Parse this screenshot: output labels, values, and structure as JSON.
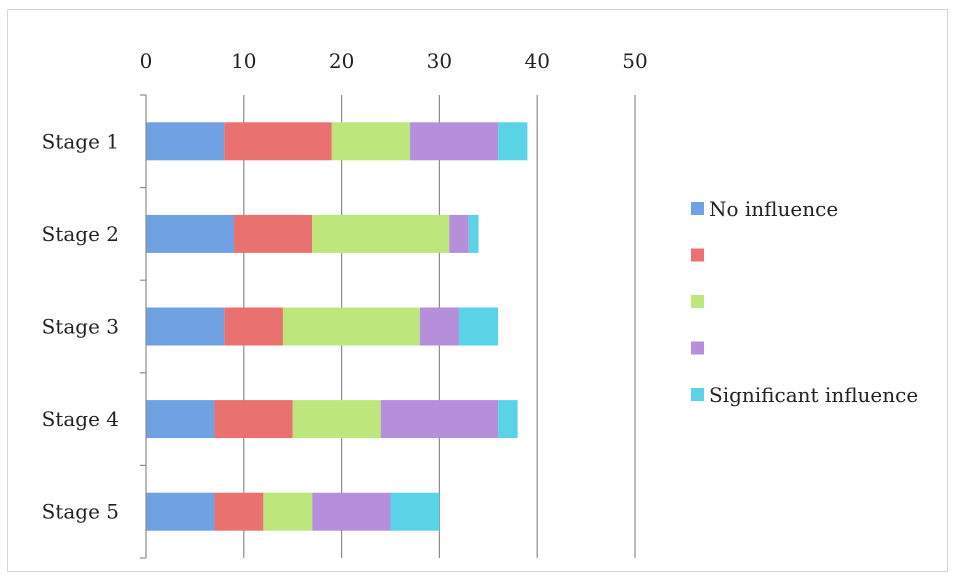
{
  "chart_data": {
    "type": "bar",
    "orientation": "horizontal",
    "stacked": true,
    "categories": [
      "Stage 1",
      "Stage 2",
      "Stage 3",
      "Stage 4",
      "Stage 5"
    ],
    "series": [
      {
        "name": "No influence",
        "color": "#6fa1e3",
        "values": [
          8,
          9,
          8,
          7,
          7
        ]
      },
      {
        "name": "",
        "color": "#e9716f",
        "values": [
          11,
          8,
          6,
          8,
          5
        ]
      },
      {
        "name": "",
        "color": "#bde77d",
        "values": [
          8,
          14,
          14,
          9,
          5
        ]
      },
      {
        "name": "",
        "color": "#b58fda",
        "values": [
          9,
          2,
          4,
          12,
          8
        ]
      },
      {
        "name": "Significant influence",
        "color": "#5bd3e6",
        "values": [
          3,
          1,
          4,
          2,
          5
        ]
      }
    ],
    "xlim": [
      0,
      50
    ],
    "xticks": [
      0,
      10,
      20,
      30,
      40,
      50
    ],
    "x_axis_position": "top",
    "grid": true,
    "legend_position": "right"
  }
}
